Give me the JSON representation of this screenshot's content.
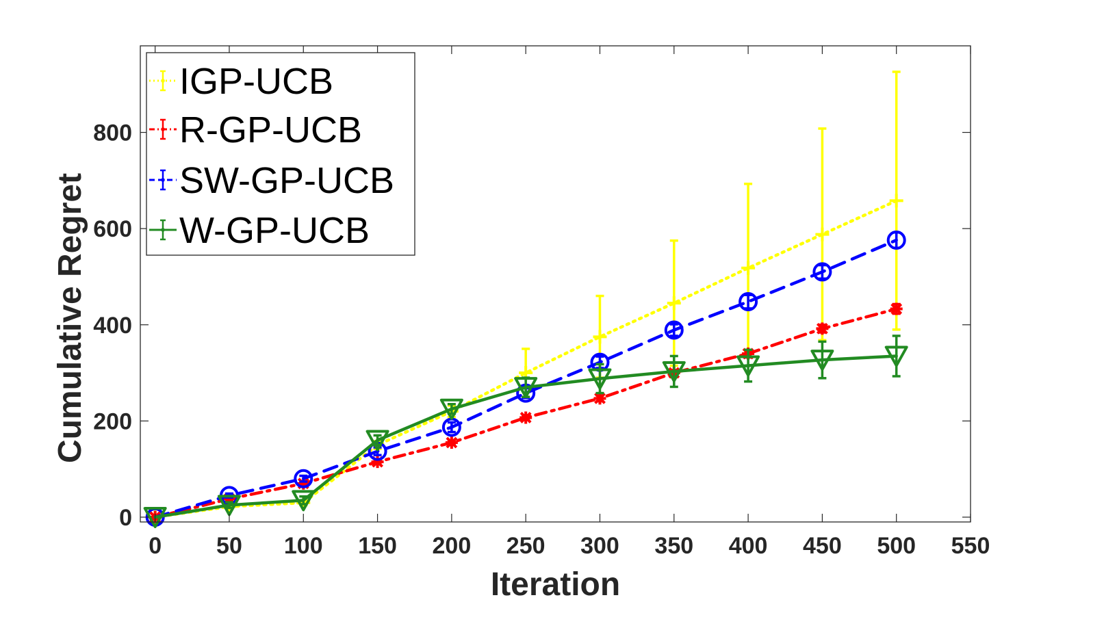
{
  "chart_data": {
    "type": "line",
    "title": "",
    "xlabel": "Iteration",
    "ylabel": "Cumulative Regret",
    "xlim": [
      -10,
      550
    ],
    "ylim": [
      -10,
      980
    ],
    "xticks": [
      0,
      50,
      100,
      150,
      200,
      250,
      300,
      350,
      400,
      450,
      500,
      550
    ],
    "yticks": [
      0,
      200,
      400,
      600,
      800
    ],
    "grid": false,
    "legend_position": "top-left",
    "x": [
      0,
      50,
      100,
      150,
      200,
      250,
      300,
      350,
      400,
      450,
      500
    ],
    "series": [
      {
        "name": "IGP-UCB",
        "color": "#ffff00",
        "line": "dotted",
        "marker": "plus",
        "values": [
          0,
          22,
          30,
          150,
          220,
          300,
          375,
          445,
          518,
          588,
          658
        ],
        "error_low": [
          0,
          5,
          5,
          8,
          12,
          50,
          85,
          130,
          175,
          220,
          268
        ],
        "error_high": [
          0,
          5,
          5,
          8,
          12,
          50,
          85,
          130,
          175,
          220,
          268
        ]
      },
      {
        "name": "R-GP-UCB",
        "color": "#ff0000",
        "line": "dashdot",
        "marker": "asterisk",
        "values": [
          0,
          38,
          70,
          115,
          155,
          207,
          247,
          300,
          340,
          392,
          433
        ],
        "error_low": [
          0,
          3,
          5,
          5,
          5,
          5,
          6,
          6,
          8,
          8,
          10
        ],
        "error_high": [
          0,
          3,
          5,
          5,
          5,
          5,
          6,
          6,
          8,
          8,
          10
        ]
      },
      {
        "name": "SW-GP-UCB",
        "color": "#0000ff",
        "line": "dashed",
        "marker": "circle",
        "values": [
          0,
          45,
          80,
          137,
          187,
          258,
          322,
          389,
          448,
          510,
          576
        ],
        "error_low": [
          0,
          4,
          6,
          8,
          10,
          10,
          12,
          12,
          14,
          14,
          16
        ],
        "error_high": [
          0,
          4,
          6,
          8,
          10,
          10,
          12,
          12,
          14,
          14,
          16
        ]
      },
      {
        "name": "W-GP-UCB",
        "color": "#228b22",
        "line": "solid",
        "marker": "triangle-down",
        "values": [
          0,
          25,
          35,
          160,
          225,
          270,
          288,
          303,
          315,
          327,
          335
        ],
        "error_low": [
          0,
          6,
          8,
          10,
          10,
          20,
          30,
          32,
          33,
          38,
          42
        ],
        "error_high": [
          0,
          6,
          8,
          10,
          10,
          20,
          30,
          32,
          33,
          38,
          42
        ]
      }
    ]
  }
}
